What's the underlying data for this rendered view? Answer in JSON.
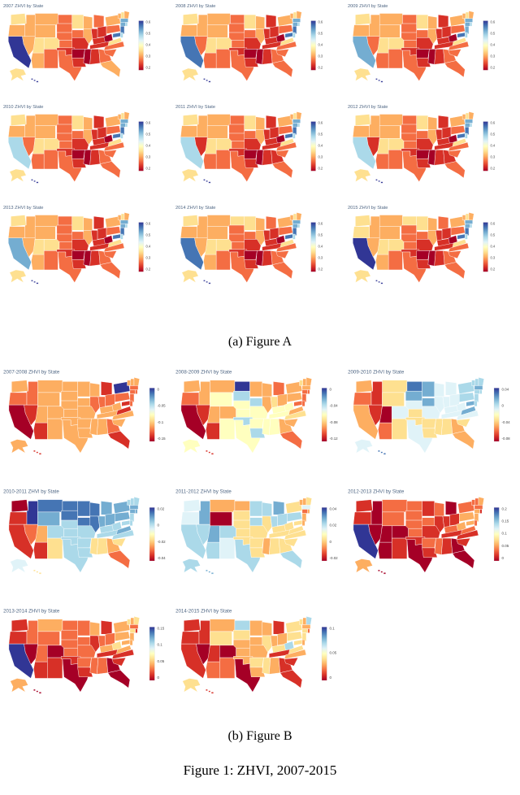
{
  "page": {
    "caption_a": "(a) Figure A",
    "caption_b": "(b) Figure B",
    "figure_caption": "Figure 1: ZHVI, 2007-2015"
  },
  "colors": {
    "scale": [
      "#313695",
      "#4575b4",
      "#74add1",
      "#abd9e9",
      "#e0f3f8",
      "#ffffbf",
      "#fee090",
      "#fdae61",
      "#f46d43",
      "#d73027",
      "#a50026"
    ],
    "title_color": "#506784",
    "tick_color": "#444444",
    "state_border": "#ffffff"
  },
  "figure_a": {
    "base": {
      "WA": "#fee090",
      "OR": "#fdae61",
      "CA": "#313695",
      "ID": "#fdae61",
      "NV": "#fdae61",
      "UT": "#fee090",
      "MT": "#fdae61",
      "WY": "#fdae61",
      "CO": "#fee090",
      "AZ": "#fdae61",
      "NM": "#f46d43",
      "ND": "#f46d43",
      "SD": "#f46d43",
      "NE": "#f46d43",
      "KS": "#f46d43",
      "OK": "#d73027",
      "TX": "#f46d43",
      "MN": "#fee090",
      "IA": "#f46d43",
      "MO": "#d73027",
      "AR": "#a50026",
      "LA": "#d73027",
      "WI": "#fdae61",
      "IL": "#fdae61",
      "MI": "#f46d43",
      "IN": "#d73027",
      "OH": "#d73027",
      "KY": "#d73027",
      "TN": "#d73027",
      "MS": "#a50026",
      "AL": "#d73027",
      "GA": "#f46d43",
      "FL": "#fdae61",
      "WV": "#a50026",
      "VA": "#fee090",
      "NC": "#f46d43",
      "SC": "#f46d43",
      "NY": "#fdae61",
      "PA": "#f46d43",
      "NJ": "#4575b4",
      "CT": "#74add1",
      "RI": "#abd9e9",
      "MA": "#74add1",
      "VT": "#fdae61",
      "NH": "#fee090",
      "ME": "#fdae61",
      "MD": "#4575b4",
      "DE": "#abd9e9",
      "AK": "#fee090",
      "HI": "#313695"
    },
    "maps": [
      {
        "title": "2007 ZHVI by State",
        "cb_ticks": [
          "0.6",
          "0.5",
          "0.4",
          "0.3",
          "0.2"
        ],
        "overrides": {}
      },
      {
        "title": "2008 ZHVI by State",
        "cb_ticks": [
          "0.6",
          "0.5",
          "0.4",
          "0.3",
          "0.2"
        ],
        "overrides": {
          "CA": "#4575b4",
          "AZ": "#f46d43",
          "FL": "#f46d43",
          "NV": "#f46d43",
          "MI": "#d73027"
        }
      },
      {
        "title": "2009 ZHVI by State",
        "cb_ticks": [
          "0.6",
          "0.5",
          "0.4",
          "0.3",
          "0.2"
        ],
        "overrides": {
          "CA": "#74add1",
          "NV": "#f46d43",
          "FL": "#f46d43",
          "AZ": "#f46d43",
          "MI": "#d73027",
          "NJ": "#74add1"
        }
      },
      {
        "title": "2010 ZHVI by State",
        "cb_ticks": [
          "0.6",
          "0.5",
          "0.4",
          "0.3",
          "0.2"
        ],
        "overrides": {
          "CA": "#abd9e9",
          "NV": "#f46d43",
          "MI": "#d73027",
          "FL": "#f46d43",
          "AZ": "#f46d43"
        }
      },
      {
        "title": "2011 ZHVI by State",
        "cb_ticks": [
          "0.6",
          "0.5",
          "0.4",
          "0.3",
          "0.2"
        ],
        "overrides": {
          "CA": "#abd9e9",
          "NV": "#d73027",
          "MI": "#d73027",
          "FL": "#f46d43",
          "AZ": "#f46d43",
          "GA": "#d73027"
        }
      },
      {
        "title": "2012 ZHVI by State",
        "cb_ticks": [
          "0.6",
          "0.5",
          "0.4",
          "0.3",
          "0.2"
        ],
        "overrides": {
          "CA": "#abd9e9",
          "NV": "#d73027",
          "MI": "#d73027",
          "FL": "#f46d43",
          "AZ": "#f46d43",
          "GA": "#d73027"
        }
      },
      {
        "title": "2013 ZHVI by State",
        "cb_ticks": [
          "0.6",
          "0.5",
          "0.4",
          "0.3",
          "0.2"
        ],
        "overrides": {
          "CA": "#74add1",
          "MI": "#d73027",
          "FL": "#f46d43"
        }
      },
      {
        "title": "2014 ZHVI by State",
        "cb_ticks": [
          "0.6",
          "0.5",
          "0.4",
          "0.3",
          "0.2"
        ],
        "overrides": {
          "CA": "#4575b4",
          "ND": "#fee090",
          "CO": "#fee090",
          "FL": "#f46d43"
        }
      },
      {
        "title": "2015 ZHVI by State",
        "cb_ticks": [
          "0.6",
          "0.5",
          "0.4",
          "0.3",
          "0.2"
        ],
        "overrides": {
          "CA": "#313695",
          "CO": "#fee090",
          "ND": "#fee090",
          "OR": "#fee090",
          "WA": "#fee090",
          "FL": "#f46d43"
        }
      }
    ]
  },
  "figure_b": {
    "maps": [
      {
        "title": "2007-2008 ZHVI by State",
        "cb_ticks": [
          "0",
          "-0.05",
          "-0.1",
          "-0.15"
        ],
        "fill_all": "#f46d43",
        "overrides": {
          "CA": "#a50026",
          "NV": "#d73027",
          "AZ": "#d73027",
          "FL": "#d73027",
          "MI": "#d73027",
          "NY": "#313695",
          "MD": "#d73027",
          "VA": "#d73027",
          "MT": "#fdae61",
          "ND": "#fdae61",
          "SD": "#fdae61",
          "WY": "#fdae61",
          "NE": "#fdae61",
          "KS": "#fdae61",
          "OK": "#fdae61",
          "TX": "#fdae61",
          "CO": "#fdae61",
          "UT": "#fdae61",
          "NM": "#fdae61",
          "WA": "#fdae61",
          "AK": "#fdae61",
          "HI": "#d73027",
          "NC": "#fdae61",
          "SC": "#fdae61",
          "AL": "#fdae61",
          "MS": "#fdae61",
          "AR": "#fdae61",
          "LA": "#fdae61",
          "TN": "#fdae61",
          "KY": "#fdae61",
          "WV": "#fdae61",
          "IA": "#fdae61",
          "MO": "#fdae61",
          "WI": "#fdae61",
          "MN": "#fdae61",
          "VT": "#fdae61",
          "NH": "#fdae61",
          "ME": "#fdae61"
        }
      },
      {
        "title": "2008-2009 ZHVI by State",
        "cb_ticks": [
          "0",
          "-0.04",
          "-0.08",
          "-0.12"
        ],
        "fill_all": "#fee090",
        "overrides": {
          "CA": "#a50026",
          "NV": "#d73027",
          "AZ": "#d73027",
          "FL": "#f46d43",
          "OR": "#f46d43",
          "WA": "#fdae61",
          "ND": "#313695",
          "SD": "#abd9e9",
          "IA": "#abd9e9",
          "OK": "#abd9e9",
          "LA": "#abd9e9",
          "TX": "#ffffbf",
          "NY": "#fdae61",
          "NJ": "#f46d43",
          "MA": "#fdae61",
          "MD": "#f46d43",
          "VA": "#fdae61",
          "MI": "#f46d43",
          "MN": "#fdae61",
          "WI": "#fdae61",
          "IL": "#fdae61",
          "OH": "#fdae61",
          "GA": "#fdae61",
          "SC": "#fdae61",
          "ID": "#fdae61",
          "UT": "#fdae61",
          "CO": "#fdae61",
          "MT": "#fdae61",
          "HI": "#d73027",
          "CT": "#f46d43",
          "RI": "#f46d43",
          "DE": "#f46d43",
          "NH": "#fdae61",
          "ME": "#fdae61",
          "PA": "#fdae61",
          "WV": "#ffffbf",
          "KY": "#ffffbf",
          "TN": "#ffffbf",
          "AL": "#ffffbf",
          "MS": "#ffffbf",
          "AR": "#ffffbf",
          "MO": "#ffffbf",
          "KS": "#ffffbf",
          "NE": "#ffffbf",
          "WY": "#ffffbf",
          "NM": "#ffffbf",
          "AK": "#ffffbf"
        }
      },
      {
        "title": "2009-2010 ZHVI by State",
        "cb_ticks": [
          "0.04",
          "0",
          "-0.04",
          "-0.08"
        ],
        "fill_all": "#abd9e9",
        "overrides": {
          "UT": "#a50026",
          "ID": "#d73027",
          "NV": "#d73027",
          "OR": "#f46d43",
          "CA": "#fdae61",
          "AZ": "#f46d43",
          "WA": "#fdae61",
          "MT": "#fee090",
          "WY": "#fee090",
          "NM": "#fee090",
          "CO": "#e0f3f8",
          "FL": "#fdae61",
          "GA": "#fdae61",
          "SC": "#fee090",
          "AL": "#fee090",
          "MS": "#fee090",
          "LA": "#fee090",
          "AR": "#fee090",
          "OK": "#fee090",
          "KS": "#fee090",
          "TX": "#e0f3f8",
          "MO": "#e0f3f8",
          "TN": "#e0f3f8",
          "KY": "#e0f3f8",
          "NE": "#e0f3f8",
          "ND": "#4575b4",
          "SD": "#74add1",
          "MN": "#74add1",
          "IA": "#74add1",
          "VA": "#74add1",
          "MD": "#74add1",
          "MA": "#74add1",
          "NY": "#abd9e9",
          "PA": "#abd9e9",
          "AK": "#e0f3f8",
          "HI": "#4575b4",
          "NC": "#e0f3f8",
          "WV": "#e0f3f8",
          "IN": "#e0f3f8",
          "OH": "#e0f3f8",
          "IL": "#e0f3f8",
          "MI": "#e0f3f8",
          "WI": "#e0f3f8"
        }
      },
      {
        "title": "2010-2011 ZHVI by State",
        "cb_ticks": [
          "0.02",
          "0",
          "-0.02",
          "-0.04"
        ],
        "fill_all": "#74add1",
        "overrides": {
          "WA": "#a50026",
          "OR": "#d73027",
          "CA": "#d73027",
          "AZ": "#d73027",
          "NV": "#f46d43",
          "UT": "#fdae61",
          "ID": "#313695",
          "MT": "#4575b4",
          "ND": "#4575b4",
          "SD": "#4575b4",
          "MN": "#4575b4",
          "WI": "#4575b4",
          "IA": "#4575b4",
          "IL": "#4575b4",
          "FL": "#f46d43",
          "GA": "#fdae61",
          "AL": "#fee090",
          "SC": "#fee090",
          "MS": "#fee090",
          "CO": "#abd9e9",
          "NM": "#fee090",
          "OK": "#abd9e9",
          "TX": "#abd9e9",
          "KS": "#abd9e9",
          "NE": "#abd9e9",
          "MO": "#abd9e9",
          "AR": "#abd9e9",
          "LA": "#abd9e9",
          "TN": "#abd9e9",
          "KY": "#abd9e9",
          "NC": "#abd9e9",
          "ME": "#abd9e9",
          "VT": "#abd9e9",
          "NH": "#abd9e9",
          "MD": "#abd9e9",
          "DE": "#abd9e9",
          "NJ": "#abd9e9",
          "WV": "#abd9e9",
          "AK": "#e0f3f8",
          "HI": "#fee090"
        }
      },
      {
        "title": "2011-2012 ZHVI by State",
        "cb_ticks": [
          "0.04",
          "0.02",
          "0",
          "-0.02"
        ],
        "fill_all": "#e0f3f8",
        "overrides": {
          "WY": "#a50026",
          "MT": "#fdae61",
          "ND": "#fdae61",
          "SD": "#fee090",
          "NE": "#fee090",
          "VT": "#fdae61",
          "NH": "#fdae61",
          "ME": "#fee090",
          "CT": "#f46d43",
          "RI": "#fdae61",
          "NJ": "#fdae61",
          "DE": "#fdae61",
          "MD": "#fee090",
          "NY": "#fee090",
          "IL": "#fee090",
          "MO": "#fee090",
          "KY": "#fee090",
          "AL": "#fee090",
          "MS": "#fdae61",
          "LA": "#fee090",
          "GA": "#fee090",
          "SC": "#fee090",
          "OK": "#fee090",
          "KS": "#fee090",
          "AZ": "#abd9e9",
          "CA": "#abd9e9",
          "NV": "#abd9e9",
          "UT": "#74add1",
          "ID": "#74add1",
          "FL": "#abd9e9",
          "MI": "#74add1",
          "CO": "#abd9e9",
          "TX": "#abd9e9",
          "AK": "#abd9e9",
          "HI": "#74add1",
          "IA": "#abd9e9",
          "MN": "#abd9e9",
          "WI": "#abd9e9",
          "IN": "#abd9e9",
          "OH": "#abd9e9",
          "PA": "#abd9e9",
          "WV": "#fee090",
          "VA": "#fee090",
          "NC": "#fee090",
          "TN": "#fee090",
          "AR": "#fee090"
        }
      },
      {
        "title": "2012-2013 ZHVI by State",
        "cb_ticks": [
          "0.2",
          "0.15",
          "0.1",
          "0.05",
          "0"
        ],
        "fill_all": "#d73027",
        "overrides": {
          "CA": "#313695",
          "NV": "#a50026",
          "AZ": "#a50026",
          "UT": "#a50026",
          "CO": "#a50026",
          "ID": "#a50026",
          "MT": "#f46d43",
          "WY": "#f46d43",
          "ND": "#f46d43",
          "SD": "#f46d43",
          "KS": "#f46d43",
          "NE": "#f46d43",
          "IA": "#f46d43",
          "AR": "#f46d43",
          "MS": "#f46d43",
          "TX": "#a50026",
          "FL": "#a50026",
          "GA": "#a50026",
          "MI": "#a50026",
          "NY": "#f46d43",
          "PA": "#fdae61",
          "ME": "#fdae61",
          "VT": "#f46d43",
          "NH": "#f46d43",
          "WV": "#fdae61",
          "VA": "#f46d43",
          "KY": "#f46d43",
          "WI": "#f46d43",
          "NJ": "#fdae61",
          "CT": "#fdae61",
          "MD": "#fdae61",
          "DE": "#f46d43",
          "MA": "#f46d43",
          "AK": "#fdae61",
          "HI": "#a50026"
        }
      },
      {
        "title": "2013-2014 ZHVI by State",
        "cb_ticks": [
          "0.15",
          "0.1",
          "0.05",
          "0"
        ],
        "fill_all": "#d73027",
        "overrides": {
          "CA": "#313695",
          "NV": "#a50026",
          "CO": "#a50026",
          "TX": "#a50026",
          "FL": "#a50026",
          "GA": "#a50026",
          "UT": "#f46d43",
          "ID": "#f46d43",
          "MT": "#fdae61",
          "WY": "#f46d43",
          "ND": "#f46d43",
          "SD": "#f46d43",
          "MN": "#f46d43",
          "WI": "#fdae61",
          "OH": "#f46d43",
          "NY": "#fdae61",
          "PA": "#fdae61",
          "NE": "#f46d43",
          "KS": "#f46d43",
          "MO": "#f46d43",
          "IA": "#f46d43",
          "IN": "#f46d43",
          "KY": "#fdae61",
          "MS": "#f46d43",
          "AL": "#f46d43",
          "AR": "#f46d43",
          "VA": "#fdae61",
          "WV": "#fee090",
          "MD": "#fdae61",
          "DE": "#fdae61",
          "NJ": "#fdae61",
          "CT": "#fee090",
          "MA": "#f46d43",
          "VT": "#fee090",
          "NH": "#fdae61",
          "ME": "#fee090",
          "AK": "#fdae61",
          "HI": "#a50026"
        }
      },
      {
        "title": "2014-2015 ZHVI by State",
        "cb_ticks": [
          "0.1",
          "0.05",
          "0"
        ],
        "fill_all": "#f46d43",
        "overrides": {
          "CO": "#a50026",
          "TX": "#a50026",
          "NV": "#a50026",
          "FL": "#d73027",
          "WA": "#d73027",
          "OR": "#d73027",
          "CA": "#d73027",
          "UT": "#d73027",
          "ID": "#d73027",
          "GA": "#d73027",
          "SC": "#d73027",
          "TN": "#d73027",
          "MI": "#d73027",
          "MT": "#fdae61",
          "WY": "#fee090",
          "ND": "#abd9e9",
          "SD": "#fee090",
          "MN": "#fdae61",
          "NE": "#fdae61",
          "KS": "#fdae61",
          "OK": "#fdae61",
          "MO": "#fdae61",
          "AR": "#fee090",
          "LA": "#fdae61",
          "MS": "#fee090",
          "AL": "#fdae61",
          "NC": "#fdae61",
          "KY": "#fee090",
          "OH": "#fdae61",
          "IN": "#fdae61",
          "IL": "#fee090",
          "WI": "#fdae61",
          "IA": "#fdae61",
          "NY": "#fee090",
          "PA": "#fee090",
          "NJ": "#fee090",
          "CT": "#fee090",
          "MA": "#fdae61",
          "VT": "#fee090",
          "NH": "#fdae61",
          "ME": "#abd9e9",
          "MD": "#fee090",
          "DE": "#fdae61",
          "VA": "#fee090",
          "WV": "#abd9e9",
          "AK": "#fee090",
          "HI": "#d73027"
        }
      }
    ]
  }
}
